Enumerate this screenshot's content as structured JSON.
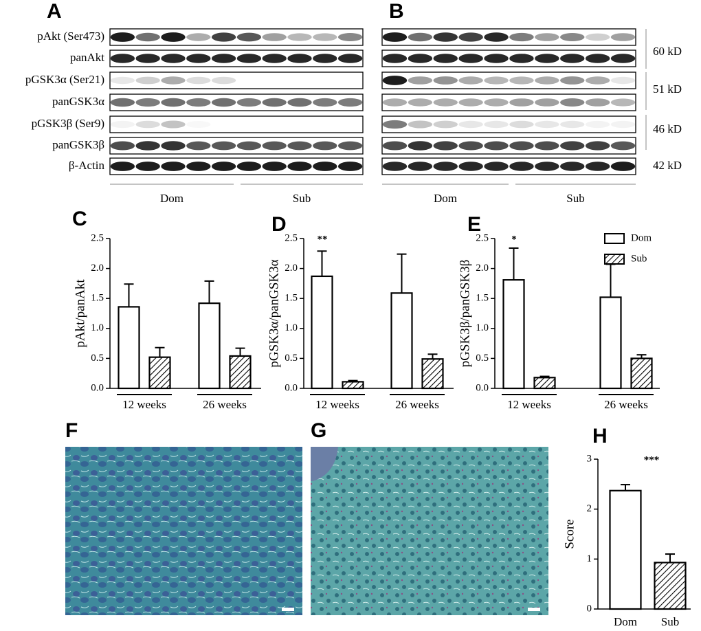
{
  "panel_labels": [
    "A",
    "B",
    "C",
    "D",
    "E",
    "F",
    "G",
    "H"
  ],
  "blots": {
    "rows": [
      "pAkt (Ser473)",
      "panAkt",
      "pGSK3α (Ser21)",
      "panGSK3α",
      "pGSK3β (Ser9)",
      "panGSK3β",
      "β-Actin"
    ],
    "groups": [
      "Dom",
      "Sub"
    ],
    "sizes": [
      "60 kD",
      "51 kD",
      "46 kD",
      "42 kD"
    ]
  },
  "chart_data": [
    {
      "type": "bar",
      "y_label": "pAkt/panAkt",
      "categories": [
        "12 weeks",
        "26 weeks"
      ],
      "series": [
        {
          "name": "Dom",
          "color": "#ffffff",
          "hatched": false,
          "values": [
            1.36,
            1.42
          ],
          "errors": [
            0.38,
            0.37
          ]
        },
        {
          "name": "Sub",
          "color": "#ffffff",
          "hatched": true,
          "values": [
            0.52,
            0.54
          ],
          "errors": [
            0.16,
            0.13
          ]
        }
      ],
      "ylim": [
        0,
        2.5
      ],
      "yticks": [
        {
          "value": 0,
          "label": "0.0"
        },
        0.5,
        {
          "value": 1,
          "label": "1.0"
        },
        1.5,
        {
          "value": 2,
          "label": "2.0"
        },
        2.5
      ]
    },
    {
      "type": "bar",
      "y_label": "pGSK3α/panGSK3α",
      "categories": [
        "12 weeks",
        "26 weeks"
      ],
      "annotation": "**",
      "series": [
        {
          "name": "Dom",
          "color": "#ffffff",
          "hatched": false,
          "values": [
            1.87,
            1.59
          ],
          "errors": [
            0.42,
            0.65
          ]
        },
        {
          "name": "Sub",
          "color": "#ffffff",
          "hatched": true,
          "values": [
            0.11,
            0.49
          ],
          "errors": [
            0.02,
            0.08
          ]
        }
      ],
      "ylim": [
        0,
        2.5
      ],
      "yticks": [
        {
          "value": 0,
          "label": "0.0"
        },
        0.5,
        {
          "value": 1,
          "label": "1.0"
        },
        1.5,
        {
          "value": 2,
          "label": "2.0"
        },
        2.5
      ]
    },
    {
      "type": "bar",
      "y_label": "pGSK3β/panGSK3β",
      "categories": [
        "12 weeks",
        "26 weeks"
      ],
      "annotation": "*",
      "legend": "upper right",
      "series": [
        {
          "name": "Dom",
          "color": "#ffffff",
          "hatched": false,
          "values": [
            1.81,
            1.52
          ],
          "errors": [
            0.53,
            0.55
          ]
        },
        {
          "name": "Sub",
          "color": "#ffffff",
          "hatched": true,
          "values": [
            0.18,
            0.5
          ],
          "errors": [
            0.02,
            0.06
          ]
        }
      ],
      "ylim": [
        0,
        2.5
      ],
      "yticks": [
        {
          "value": 0,
          "label": "0.0"
        },
        0.5,
        {
          "value": 1,
          "label": "1.0"
        },
        1.5,
        {
          "value": 2,
          "label": "2.0"
        },
        2.5
      ]
    },
    {
      "type": "single",
      "y_label": "Score",
      "categories": [
        "Dom",
        "Sub"
      ],
      "annotation": "***",
      "values": [
        2.37,
        0.93
      ],
      "errors": [
        0.12,
        0.17
      ],
      "hatched": [
        false,
        true
      ],
      "color": "#ffffff",
      "ylim": [
        0,
        3
      ],
      "yticks": [
        0,
        1,
        2,
        3
      ]
    }
  ]
}
